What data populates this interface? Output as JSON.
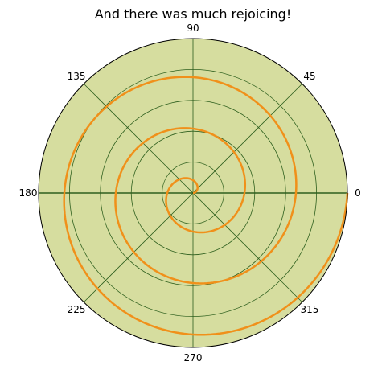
{
  "chart_data": {
    "type": "line",
    "projection": "polar",
    "title": "And there was much rejoicing!",
    "theta_tick_labels": [
      "0",
      "45",
      "90",
      "135",
      "180",
      "225",
      "270",
      "315"
    ],
    "theta_ticks_deg": [
      0,
      45,
      90,
      135,
      180,
      225,
      270,
      315
    ],
    "r_gridlines": [
      0.2,
      0.4,
      0.6,
      0.8
    ],
    "r_tick_labels": [
      "",
      "",
      "",
      ""
    ],
    "rlim": [
      0,
      1.0
    ],
    "grid": true,
    "series": [
      {
        "description": "Archimedean spiral r = theta / (6*pi), 3 turns",
        "theta_start_rad": 0,
        "theta_end_rad": 18.85,
        "r_start": 0,
        "r_end": 1.0,
        "points_theta_rad": [
          0,
          0.79,
          1.57,
          2.36,
          3.14,
          3.93,
          4.71,
          5.5,
          6.28,
          7.07,
          7.85,
          8.64,
          9.42,
          10.21,
          10.99,
          11.78,
          12.57,
          13.35,
          14.14,
          14.92,
          15.71,
          16.49,
          17.28,
          18.06,
          18.85
        ],
        "points_r": [
          0,
          0.042,
          0.083,
          0.125,
          0.167,
          0.208,
          0.25,
          0.292,
          0.333,
          0.375,
          0.417,
          0.458,
          0.5,
          0.542,
          0.583,
          0.625,
          0.667,
          0.708,
          0.75,
          0.792,
          0.833,
          0.875,
          0.917,
          0.958,
          1.0
        ]
      }
    ]
  },
  "colors": {
    "background": "#ffffff",
    "plot_face": "#d6dd9f",
    "outline": "#000000",
    "grid": "#2e5f1e",
    "spiral": "#f0901a"
  }
}
